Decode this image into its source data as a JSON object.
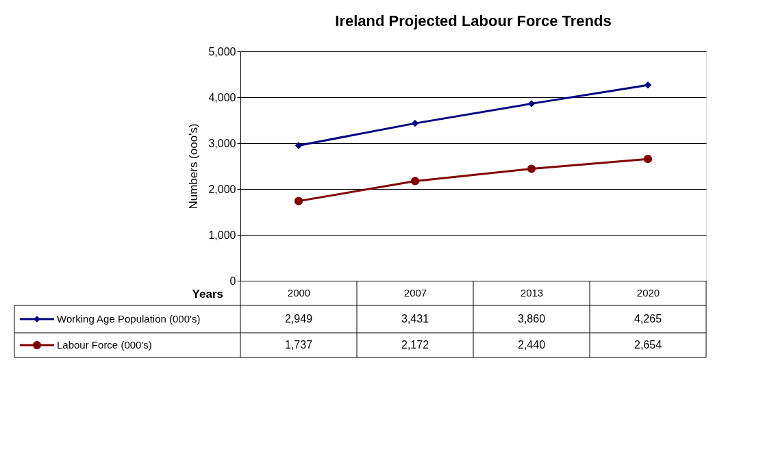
{
  "chart_data": {
    "type": "line",
    "title": "Ireland Projected Labour Force Trends",
    "xlabel": "Years",
    "ylabel": "Numbers (ooo's)",
    "categories": [
      "2000",
      "2007",
      "2013",
      "2020"
    ],
    "series": [
      {
        "name": "Working Age Population (000's)",
        "color": "#000080",
        "marker": "diamond",
        "values": [
          2949,
          3431,
          3860,
          4265
        ],
        "value_labels": [
          "2,949",
          "3,431",
          "3,860",
          "4,265"
        ]
      },
      {
        "name": "Labour Force (000's)",
        "color": "#800000",
        "marker": "circle",
        "values": [
          1737,
          2172,
          2440,
          2654
        ],
        "value_labels": [
          "1,737",
          "2,172",
          "2,440",
          "2,654"
        ]
      }
    ],
    "ylim": [
      0,
      5000
    ],
    "yticks": [
      0,
      {
        "value": 1000,
        "label": "1,000"
      },
      {
        "value": 2000,
        "label": "2,000"
      },
      {
        "value": 3000,
        "label": "3,000"
      },
      {
        "value": 4000,
        "label": "4,000"
      },
      {
        "value": 5000,
        "label": "5,000"
      }
    ],
    "grid": "y",
    "legend": "bottom left",
    "line_style": "solid"
  }
}
